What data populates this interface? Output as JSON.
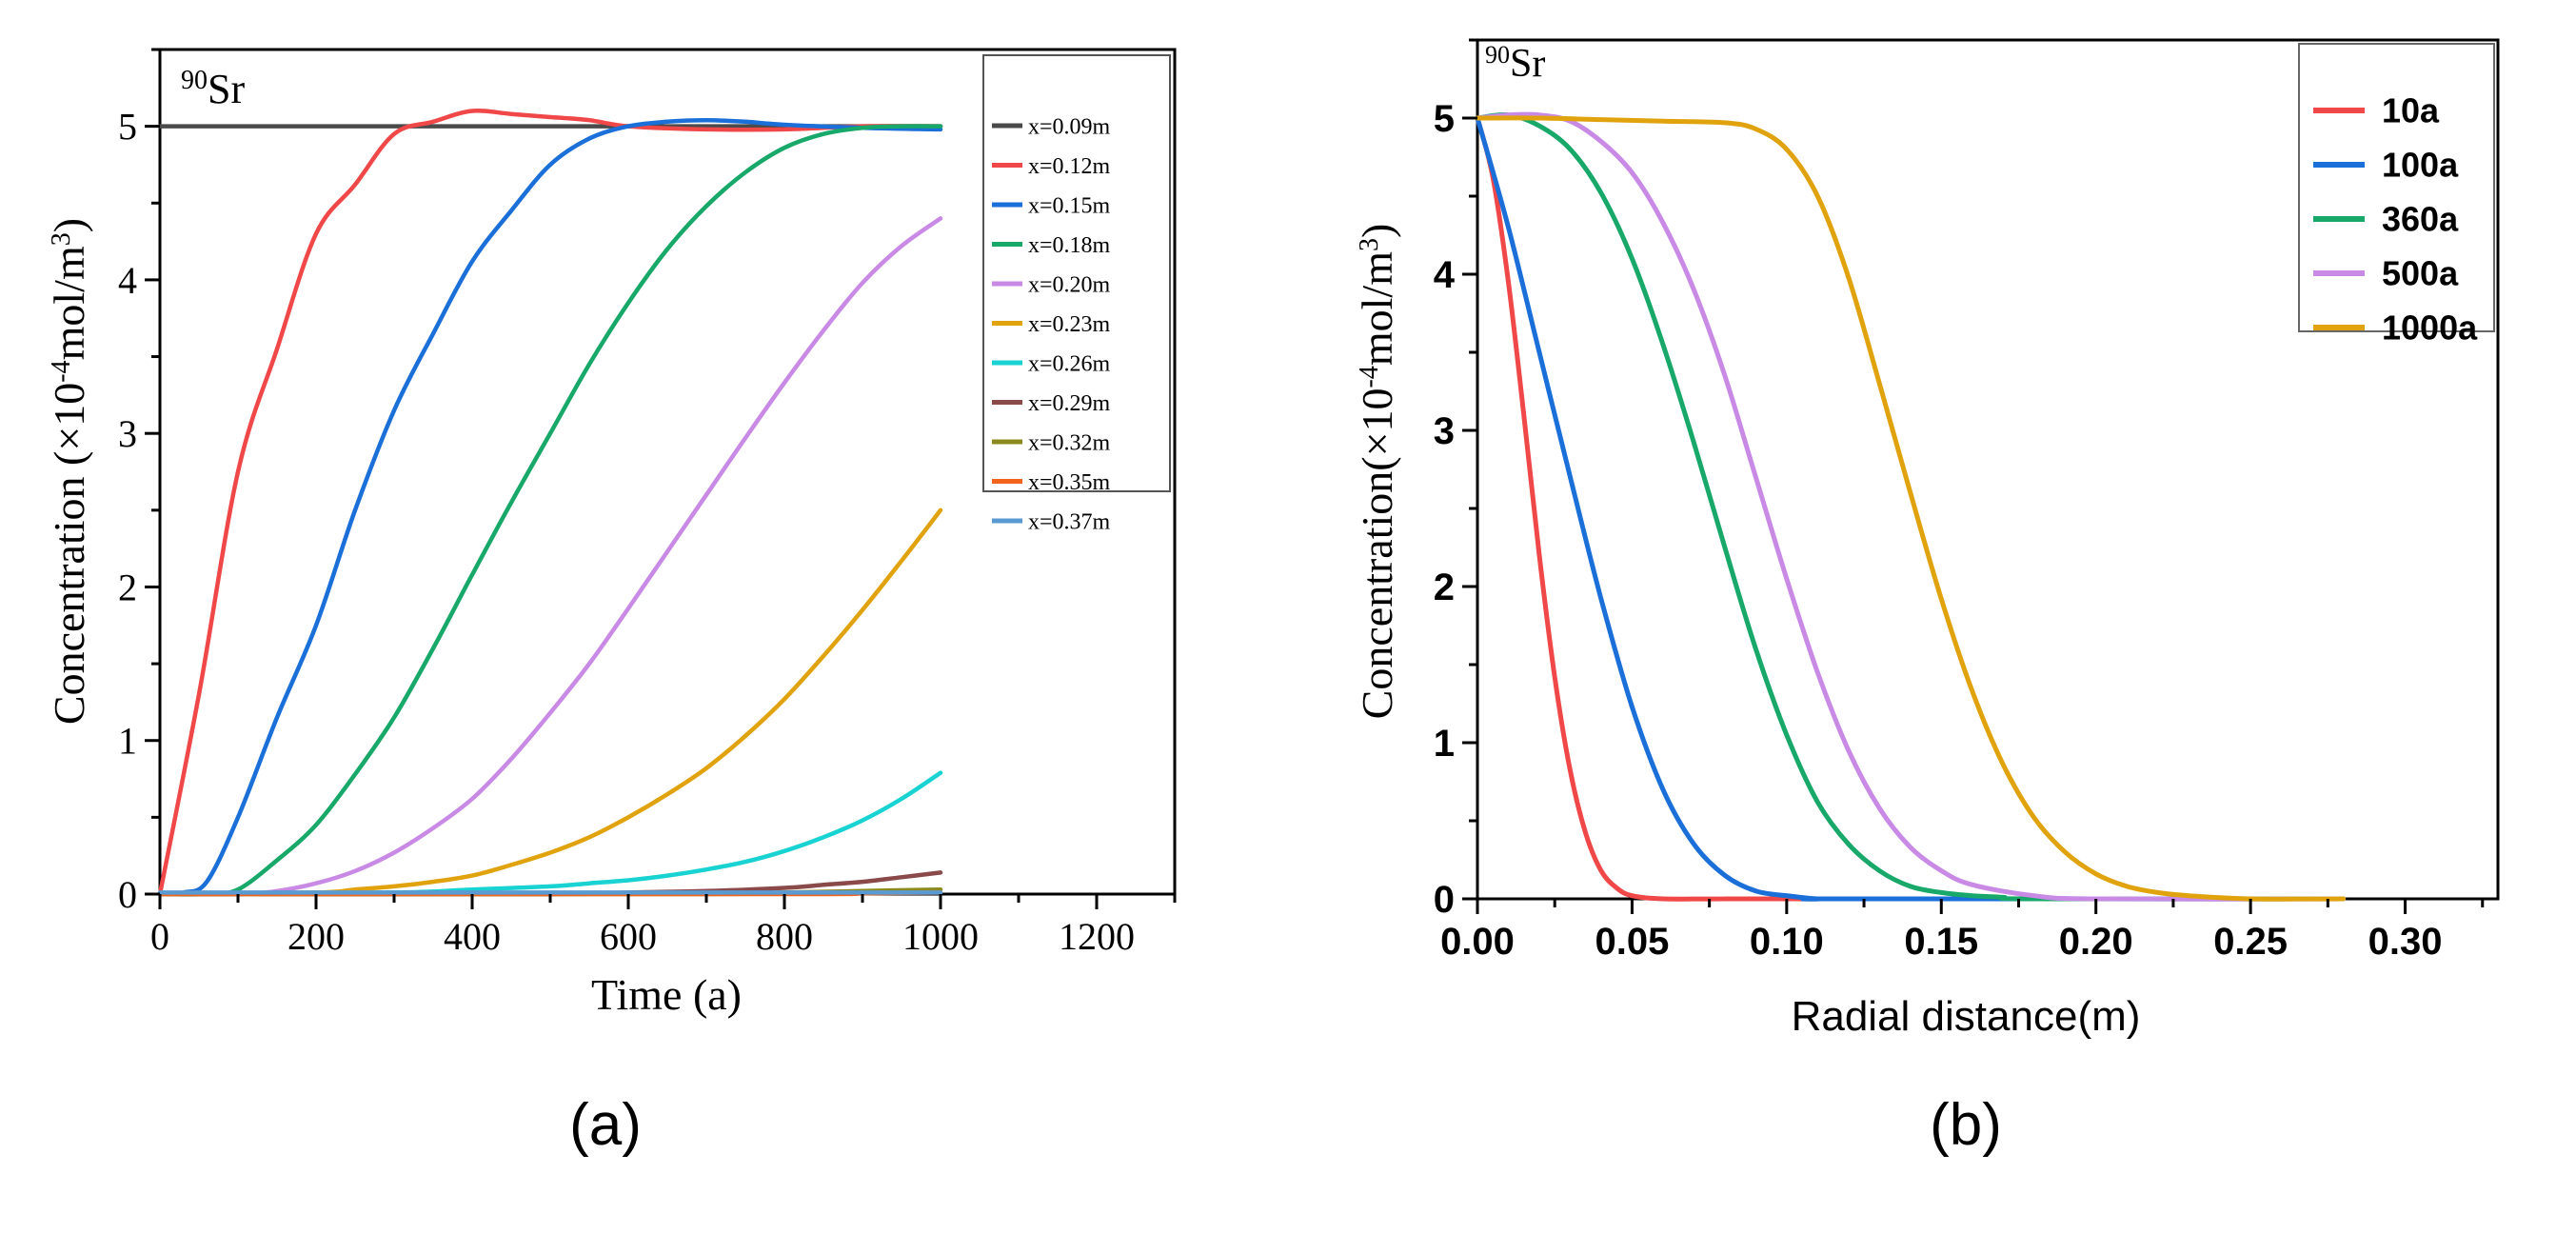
{
  "colors": {
    "x=0.09m": "#4a4a4a",
    "x=0.12m": "#f04848",
    "x=0.15m": "#1a6fd8",
    "x=0.18m": "#17a86a",
    "x=0.20m": "#c98ae6",
    "x=0.23m": "#e0a30e",
    "x=0.26m": "#19d2d2",
    "x=0.29m": "#8a4a4a",
    "x=0.32m": "#8a8a1e",
    "x=0.35m": "#f0641e",
    "x=0.37m": "#5a9ad2",
    "10a": "#f04848",
    "100a": "#1a6fd8",
    "360a": "#17a86a",
    "500a": "#c98ae6",
    "1000a": "#e0a30e"
  },
  "chart_data": [
    {
      "type": "line",
      "panel_label": "(a)",
      "annotation": {
        "isotope_mass": "90",
        "isotope_symbol": "Sr"
      },
      "xlabel": "Time (a)",
      "ylabel": {
        "prefix": "Concentration (×10",
        "exponent": "-4",
        "middle": "mol/m",
        "unit_exponent": "3",
        "suffix": ")"
      },
      "xlim": [
        0,
        1300
      ],
      "ylim": [
        0,
        5.5
      ],
      "xticks": [
        "0",
        "200",
        "400",
        "600",
        "800",
        "1000",
        "1200"
      ],
      "yticks": [
        "0",
        "1",
        "2",
        "3",
        "4",
        "5"
      ],
      "legend_position": "top-right",
      "series": [
        {
          "name": "x=0.09m",
          "x": [
            0,
            1000
          ],
          "y": [
            5.0,
            5.0
          ]
        },
        {
          "name": "x=0.12m",
          "x": [
            0,
            50,
            100,
            150,
            200,
            250,
            300,
            350,
            400,
            450,
            500,
            550,
            600,
            700,
            800,
            900,
            1000
          ],
          "y": [
            0,
            1.3,
            2.75,
            3.55,
            4.3,
            4.62,
            4.95,
            5.03,
            5.1,
            5.08,
            5.06,
            5.04,
            5.0,
            4.98,
            4.98,
            5.0,
            5.0
          ]
        },
        {
          "name": "x=0.15m",
          "x": [
            0,
            30,
            60,
            100,
            150,
            200,
            250,
            300,
            350,
            400,
            450,
            500,
            550,
            600,
            650,
            700,
            750,
            800,
            900,
            1000
          ],
          "y": [
            0,
            0.01,
            0.08,
            0.5,
            1.15,
            1.75,
            2.5,
            3.15,
            3.65,
            4.12,
            4.45,
            4.75,
            4.92,
            5.0,
            5.03,
            5.04,
            5.03,
            5.01,
            4.99,
            4.98
          ]
        },
        {
          "name": "x=0.18m",
          "x": [
            0,
            60,
            100,
            150,
            200,
            250,
            300,
            350,
            400,
            450,
            500,
            550,
            600,
            650,
            700,
            750,
            800,
            850,
            900,
            950,
            1000
          ],
          "y": [
            0,
            0.0,
            0.03,
            0.22,
            0.45,
            0.78,
            1.15,
            1.6,
            2.08,
            2.55,
            3.0,
            3.45,
            3.85,
            4.2,
            4.48,
            4.7,
            4.86,
            4.95,
            4.99,
            5.0,
            5.0
          ]
        },
        {
          "name": "x=0.20m",
          "x": [
            0,
            100,
            150,
            200,
            250,
            300,
            350,
            400,
            450,
            500,
            550,
            600,
            650,
            700,
            750,
            800,
            850,
            900,
            950,
            1000
          ],
          "y": [
            0,
            0.0,
            0.02,
            0.07,
            0.15,
            0.27,
            0.43,
            0.62,
            0.88,
            1.18,
            1.5,
            1.86,
            2.23,
            2.6,
            2.97,
            3.33,
            3.67,
            3.98,
            4.22,
            4.4
          ]
        },
        {
          "name": "x=0.23m",
          "x": [
            0,
            200,
            250,
            300,
            350,
            400,
            450,
            500,
            550,
            600,
            650,
            700,
            750,
            800,
            850,
            900,
            950,
            1000
          ],
          "y": [
            0,
            0.01,
            0.03,
            0.05,
            0.08,
            0.12,
            0.19,
            0.27,
            0.37,
            0.5,
            0.65,
            0.82,
            1.03,
            1.27,
            1.55,
            1.85,
            2.17,
            2.5
          ]
        },
        {
          "name": "x=0.26m",
          "x": [
            0,
            300,
            400,
            500,
            550,
            600,
            650,
            700,
            750,
            800,
            850,
            900,
            950,
            1000
          ],
          "y": [
            0,
            0.01,
            0.03,
            0.05,
            0.07,
            0.09,
            0.12,
            0.16,
            0.21,
            0.28,
            0.37,
            0.48,
            0.62,
            0.79
          ]
        },
        {
          "name": "x=0.29m",
          "x": [
            0,
            500,
            600,
            700,
            800,
            850,
            900,
            950,
            1000
          ],
          "y": [
            0,
            0.0,
            0.01,
            0.02,
            0.04,
            0.06,
            0.08,
            0.11,
            0.14
          ]
        },
        {
          "name": "x=0.32m",
          "x": [
            0,
            700,
            800,
            900,
            1000
          ],
          "y": [
            0,
            0.0,
            0.01,
            0.02,
            0.03
          ]
        },
        {
          "name": "x=0.35m",
          "x": [
            0,
            800,
            900,
            1000
          ],
          "y": [
            0,
            0.0,
            0.005,
            0.01
          ]
        },
        {
          "name": "x=0.37m",
          "x": [
            0,
            1000
          ],
          "y": [
            0.01,
            0.01
          ]
        }
      ]
    },
    {
      "type": "line",
      "panel_label": "(b)",
      "annotation": {
        "isotope_mass": "90",
        "isotope_symbol": "Sr"
      },
      "xlabel": "Radial distance(m)",
      "ylabel": {
        "prefix": "Concentration(×10",
        "exponent": "-4",
        "middle": "mol/m",
        "unit_exponent": "3",
        "suffix": ")"
      },
      "xlim": [
        0,
        0.33
      ],
      "ylim": [
        0,
        5.5
      ],
      "xticks": [
        "0.00",
        "0.05",
        "0.10",
        "0.15",
        "0.20",
        "0.25",
        "0.30"
      ],
      "yticks": [
        "0",
        "1",
        "2",
        "3",
        "4",
        "5"
      ],
      "legend_position": "top-right",
      "series": [
        {
          "name": "10a",
          "x": [
            0,
            0.005,
            0.01,
            0.015,
            0.02,
            0.025,
            0.03,
            0.035,
            0.04,
            0.045,
            0.05,
            0.06,
            0.08,
            0.1,
            0.28
          ],
          "y": [
            5.0,
            4.62,
            3.95,
            3.1,
            2.2,
            1.42,
            0.82,
            0.42,
            0.18,
            0.07,
            0.02,
            0.0,
            0.0,
            0.0,
            0.0
          ]
        },
        {
          "name": "100a",
          "x": [
            0,
            0.01,
            0.02,
            0.03,
            0.04,
            0.05,
            0.06,
            0.07,
            0.08,
            0.09,
            0.1,
            0.11,
            0.12,
            0.28
          ],
          "y": [
            5.0,
            4.3,
            3.5,
            2.7,
            1.92,
            1.23,
            0.7,
            0.35,
            0.15,
            0.05,
            0.02,
            0.0,
            0.0,
            0.0
          ]
        },
        {
          "name": "360a",
          "x": [
            0,
            0.01,
            0.02,
            0.03,
            0.04,
            0.05,
            0.06,
            0.07,
            0.08,
            0.09,
            0.1,
            0.11,
            0.12,
            0.13,
            0.14,
            0.15,
            0.16,
            0.17,
            0.18,
            0.28
          ],
          "y": [
            5.0,
            5.02,
            4.95,
            4.8,
            4.52,
            4.1,
            3.55,
            2.92,
            2.25,
            1.6,
            1.05,
            0.62,
            0.35,
            0.18,
            0.08,
            0.04,
            0.02,
            0.01,
            0.0,
            0.0
          ]
        },
        {
          "name": "500a",
          "x": [
            0,
            0.01,
            0.02,
            0.03,
            0.04,
            0.05,
            0.06,
            0.07,
            0.08,
            0.09,
            0.1,
            0.11,
            0.12,
            0.13,
            0.14,
            0.15,
            0.16,
            0.18,
            0.2,
            0.28
          ],
          "y": [
            5.0,
            5.02,
            5.02,
            4.98,
            4.85,
            4.65,
            4.33,
            3.9,
            3.35,
            2.7,
            2.05,
            1.45,
            0.95,
            0.58,
            0.33,
            0.18,
            0.09,
            0.02,
            0.0,
            0.0
          ]
        },
        {
          "name": "1000a",
          "x": [
            0,
            0.02,
            0.04,
            0.06,
            0.08,
            0.09,
            0.1,
            0.11,
            0.12,
            0.13,
            0.14,
            0.15,
            0.16,
            0.17,
            0.18,
            0.19,
            0.2,
            0.21,
            0.22,
            0.23,
            0.25,
            0.28
          ],
          "y": [
            5.0,
            5.0,
            4.99,
            4.98,
            4.97,
            4.93,
            4.8,
            4.5,
            3.98,
            3.3,
            2.6,
            1.92,
            1.33,
            0.86,
            0.52,
            0.3,
            0.16,
            0.08,
            0.04,
            0.02,
            0.0,
            0.0
          ]
        }
      ]
    }
  ]
}
